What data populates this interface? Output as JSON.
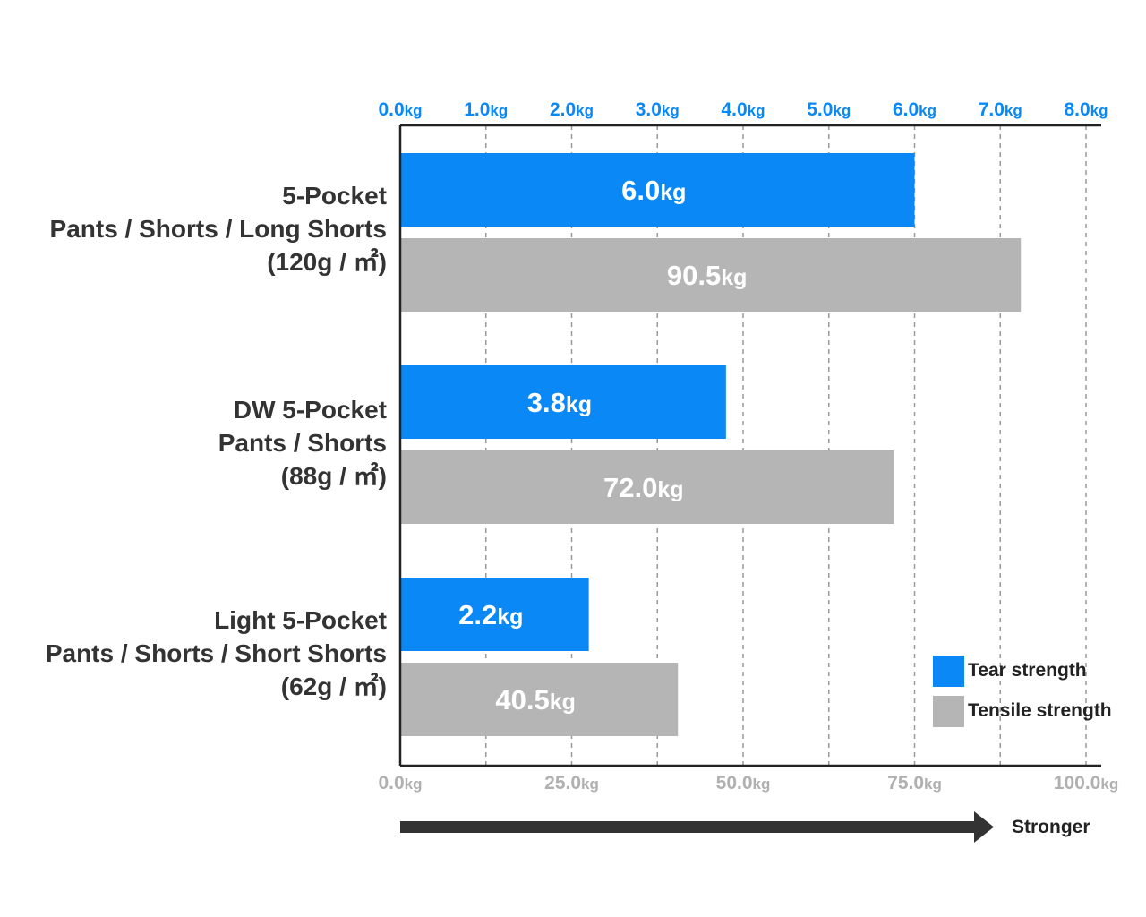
{
  "chart_data": {
    "type": "bar",
    "orientation": "horizontal",
    "categories": [
      [
        "5-Pocket",
        "Pants / Shorts / Long Shorts",
        "(120g / ㎡)"
      ],
      [
        "DW 5-Pocket",
        "Pants / Shorts",
        "(88g / ㎡)"
      ],
      [
        "Light 5-Pocket",
        "Pants / Shorts / Short Shorts",
        "(62g / ㎡)"
      ]
    ],
    "series": [
      {
        "name": "Tear strength",
        "axis": "top",
        "color": "#0a88f5",
        "values": [
          6.0,
          3.8,
          2.2
        ],
        "value_labels": [
          "6.0",
          "3.8",
          "2.2"
        ]
      },
      {
        "name": "Tensile strength",
        "axis": "bottom",
        "color": "#b5b5b5",
        "values": [
          90.5,
          72.0,
          40.5
        ],
        "value_labels": [
          "90.5",
          "72.0",
          "40.5"
        ]
      }
    ],
    "unit": "kg",
    "top_axis": {
      "range": [
        0,
        8
      ],
      "ticks": [
        "0.0",
        "1.0",
        "2.0",
        "3.0",
        "4.0",
        "5.0",
        "6.0",
        "7.0",
        "8.0"
      ],
      "color": "#0a88f5"
    },
    "bottom_axis": {
      "range": [
        0,
        100
      ],
      "ticks": [
        "0.0",
        "25.0",
        "50.0",
        "75.0",
        "100.0"
      ],
      "color": "#b0b0b0"
    },
    "grid": true,
    "grid_style": "dashed",
    "legend_position": "bottom-right",
    "arrow_label": "Stronger"
  }
}
